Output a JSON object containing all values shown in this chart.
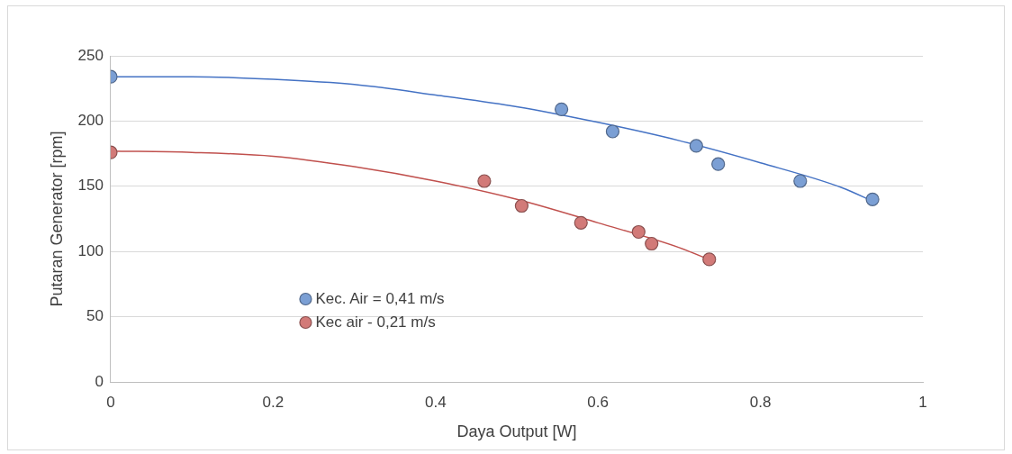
{
  "chart_data": {
    "type": "scatter",
    "xlabel": "Daya Output [W]",
    "ylabel": "Putaran Generator [rpm]",
    "xlim": [
      0,
      1
    ],
    "xticks": [
      0,
      0.2,
      0.4,
      0.6,
      0.8,
      1
    ],
    "ylim": [
      0,
      250
    ],
    "yticks": [
      0,
      50,
      100,
      150,
      200,
      250
    ],
    "grid": "y",
    "legend": "bottom left",
    "marker": "circle",
    "series": [
      {
        "name": "Kec. Air = 0,41 m/s",
        "color": "#7b9fd4",
        "x": [
          0,
          0.555,
          0.618,
          0.721,
          0.748,
          0.849,
          0.938
        ],
        "values": [
          234,
          209,
          192,
          181,
          167,
          154,
          140
        ]
      },
      {
        "name": "Kec air - 0,21 m/s",
        "color": "#d27a78",
        "x": [
          0,
          0.46,
          0.506,
          0.579,
          0.65,
          0.666,
          0.737
        ],
        "values": [
          176,
          154,
          135,
          122,
          115,
          106,
          94
        ]
      },
      {
        "type": "line",
        "color": "#4472c4",
        "marker": "none",
        "x": [
          0,
          0.1,
          0.2,
          0.3,
          0.4,
          0.5,
          0.6,
          0.7,
          0.8,
          0.9,
          0.94
        ],
        "values": [
          234,
          234,
          232,
          228,
          220,
          211,
          199,
          185,
          168,
          149,
          138
        ]
      },
      {
        "type": "line",
        "color": "#c0504d",
        "marker": "none",
        "x": [
          0,
          0.1,
          0.2,
          0.3,
          0.4,
          0.5,
          0.6,
          0.7,
          0.74
        ],
        "values": [
          177,
          176,
          173,
          165,
          154,
          140,
          122,
          103,
          93
        ]
      }
    ]
  }
}
